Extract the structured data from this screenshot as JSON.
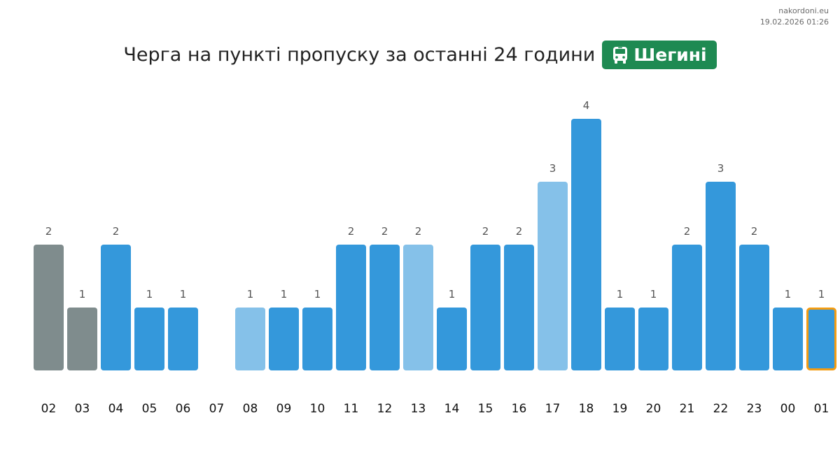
{
  "site": "nakordoni.eu",
  "timestamp": "19.02.2026 01:26",
  "title": "Черга на пункті пропуску за останні 24 години",
  "badge": {
    "icon": "bus-icon",
    "label": "Шегині"
  },
  "colors": {
    "past": "#7f8c8d",
    "normal": "#3498db",
    "light": "#85c1e9",
    "highlight_border": "#f39c12",
    "badge_bg": "#1e8a52"
  },
  "chart_data": {
    "type": "bar",
    "title": "Черга на пункті пропуску за останні 24 години",
    "xlabel": "",
    "ylabel": "",
    "ylim": [
      0,
      4
    ],
    "grid": false,
    "categories": [
      "02",
      "03",
      "04",
      "05",
      "06",
      "07",
      "08",
      "09",
      "10",
      "11",
      "12",
      "13",
      "14",
      "15",
      "16",
      "17",
      "18",
      "19",
      "20",
      "21",
      "22",
      "23",
      "00",
      "01"
    ],
    "values": [
      2,
      1,
      2,
      1,
      1,
      null,
      1,
      1,
      1,
      2,
      2,
      2,
      1,
      2,
      2,
      3,
      4,
      1,
      1,
      2,
      3,
      2,
      1,
      1
    ],
    "bar_styles": [
      "past",
      "past",
      "normal",
      "normal",
      "normal",
      "normal",
      "light",
      "normal",
      "normal",
      "normal",
      "normal",
      "light",
      "normal",
      "normal",
      "normal",
      "light",
      "normal",
      "normal",
      "normal",
      "normal",
      "normal",
      "normal",
      "normal",
      "highlight"
    ]
  }
}
